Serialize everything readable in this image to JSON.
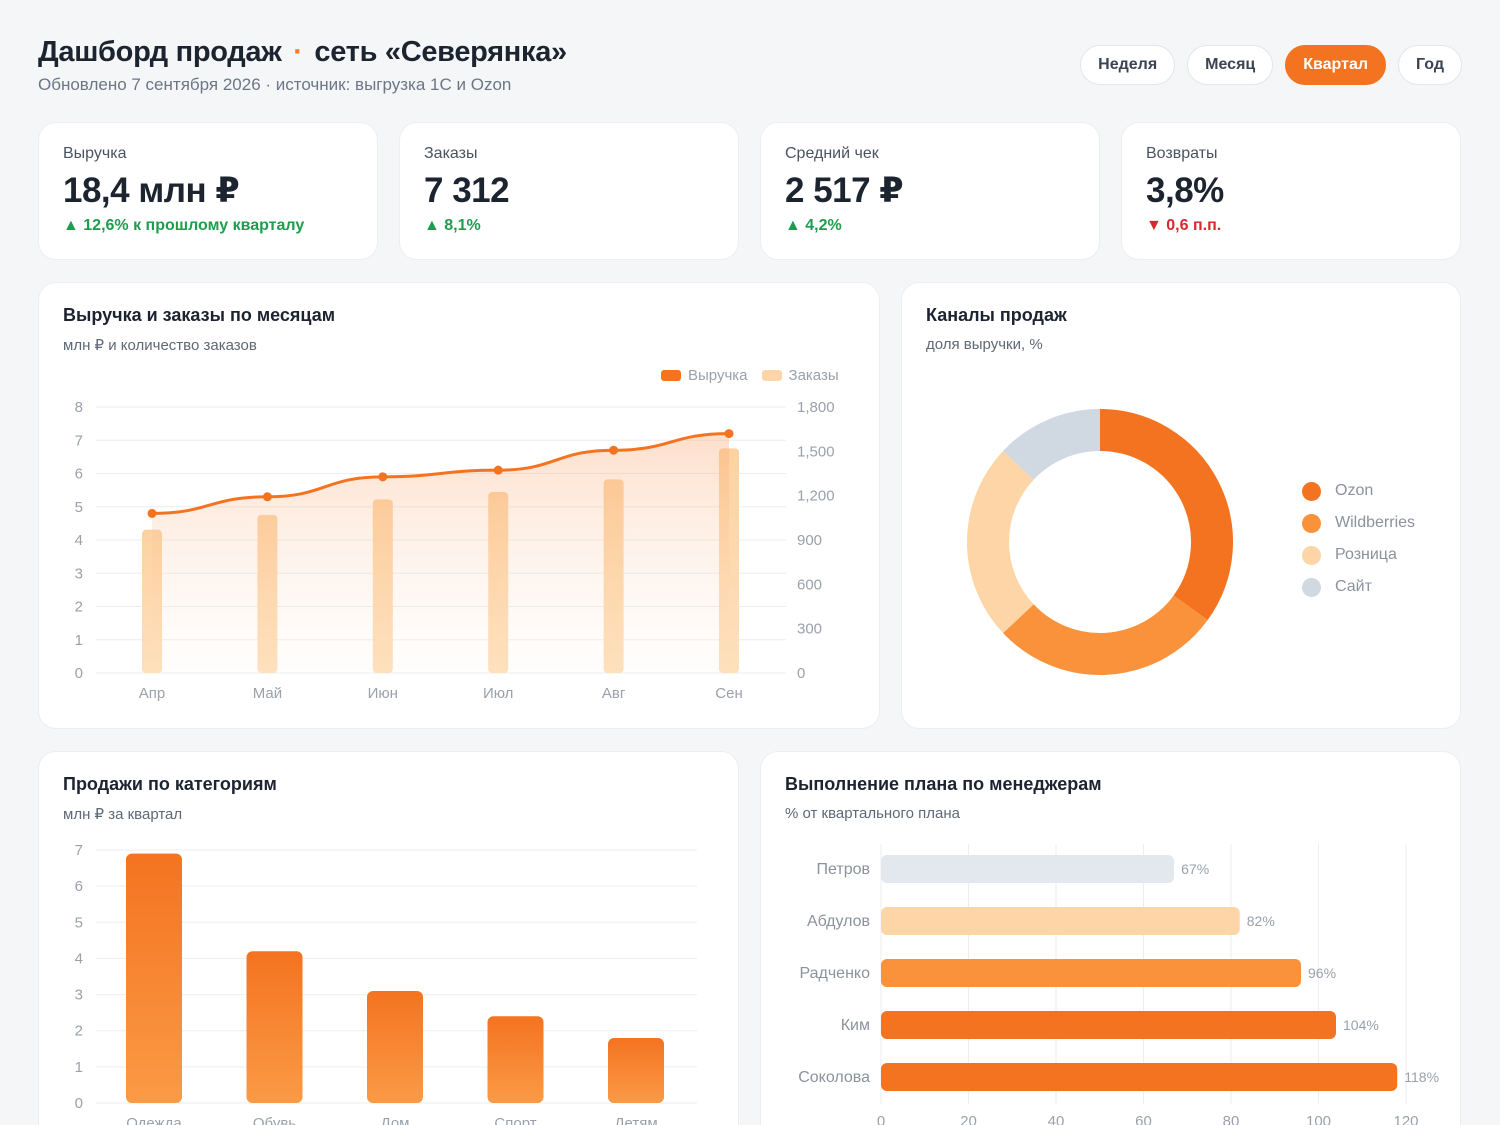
{
  "header": {
    "title": "Дашборд продаж",
    "title_sep": "·",
    "title_network": "сеть «Северянка»",
    "subtitle": "Обновлено 7 сентября 2026 · источник: выгрузка 1С и Ozon"
  },
  "periods": [
    "Неделя",
    "Месяц",
    "Квартал",
    "Год"
  ],
  "active_period": "Квартал",
  "kpis": [
    {
      "label": "Выручка",
      "value": "18,4 млн ₽",
      "delta": "▲ 12,6% к прошлому кварталу",
      "trend": "up"
    },
    {
      "label": "Заказы",
      "value": "7 312",
      "delta": "▲ 8,1%",
      "trend": "up"
    },
    {
      "label": "Средний чек",
      "value": "2 517 ₽",
      "delta": "▲ 4,2%",
      "trend": "up"
    },
    {
      "label": "Возвраты",
      "value": "3,8%",
      "delta": "▼ 0,6 п.п.",
      "trend": "down"
    }
  ],
  "colors": {
    "accent": "#f47320",
    "orange_mid": "#f9923a",
    "peach": "#fdd5a6",
    "grey_blue": "#d0d8e2",
    "up": "#1f9d4c",
    "down": "#d9272e"
  },
  "panels": {
    "monthly": {
      "title": "Выручка и заказы по месяцам",
      "subtitle": "млн ₽ и количество заказов",
      "legend_revenue": "Выручка",
      "legend_orders": "Заказы"
    },
    "channels": {
      "title": "Каналы продаж",
      "subtitle": "доля выручки, %"
    },
    "categories": {
      "title": "Продажи по категориям",
      "subtitle": "млн ₽ за квартал"
    },
    "managers": {
      "title": "Выполнение плана по менеджерам",
      "subtitle": "% от квартального плана"
    }
  },
  "chart_data": [
    {
      "type": "line",
      "title": "Выручка и заказы по месяцам",
      "categories": [
        "Апр",
        "Май",
        "Июн",
        "Июл",
        "Авг",
        "Сен"
      ],
      "series": [
        {
          "name": "Выручка",
          "type": "line",
          "axis": "left",
          "values": [
            4.8,
            5.3,
            5.9,
            6.1,
            6.7,
            7.2
          ]
        },
        {
          "name": "Заказы",
          "type": "bar",
          "axis": "right",
          "values": [
            970,
            1070,
            1175,
            1225,
            1310,
            1520
          ]
        }
      ],
      "ylim_left": [
        0,
        8
      ],
      "yticks_left": [
        "0",
        "1",
        "2",
        "3",
        "4",
        "5",
        "6",
        "7",
        "8"
      ],
      "ylim_right": [
        0,
        1800
      ],
      "yticks_right": [
        "0",
        "300",
        "600",
        "900",
        "1,200",
        "1,500",
        "1,800"
      ],
      "legend": "top-right",
      "grid": true
    },
    {
      "type": "pie",
      "title": "Каналы продаж",
      "labels": [
        "Ozon",
        "Wildberries",
        "Розница",
        "Сайт"
      ],
      "values": [
        35,
        28,
        24,
        13
      ],
      "colors": [
        "#f47320",
        "#f9923a",
        "#fdd5a6",
        "#d0d8e2"
      ],
      "legend": "right"
    },
    {
      "type": "bar",
      "title": "Продажи по категориям",
      "categories": [
        "Одежда",
        "Обувь",
        "Дом",
        "Спорт",
        "Детям"
      ],
      "values": [
        6.9,
        4.2,
        3.1,
        2.4,
        1.8
      ],
      "ylim": [
        0,
        7
      ],
      "yticks": [
        "0",
        "1",
        "2",
        "3",
        "4",
        "5",
        "6",
        "7"
      ],
      "grid": true
    },
    {
      "type": "bar",
      "orientation": "horizontal",
      "title": "Выполнение плана по менеджерам",
      "categories": [
        "Петров",
        "Абдулов",
        "Радченко",
        "Ким",
        "Соколова"
      ],
      "values": [
        67,
        82,
        96,
        104,
        118
      ],
      "value_labels": [
        "67%",
        "82%",
        "96%",
        "104%",
        "118%"
      ],
      "bar_colors": [
        "#e3e8ef",
        "#fdd5a6",
        "#f9923a",
        "#f47320",
        "#f47320"
      ],
      "xlim": [
        0,
        120
      ],
      "xticks": [
        "0",
        "20",
        "40",
        "60",
        "80",
        "100",
        "120"
      ],
      "grid": true
    }
  ]
}
